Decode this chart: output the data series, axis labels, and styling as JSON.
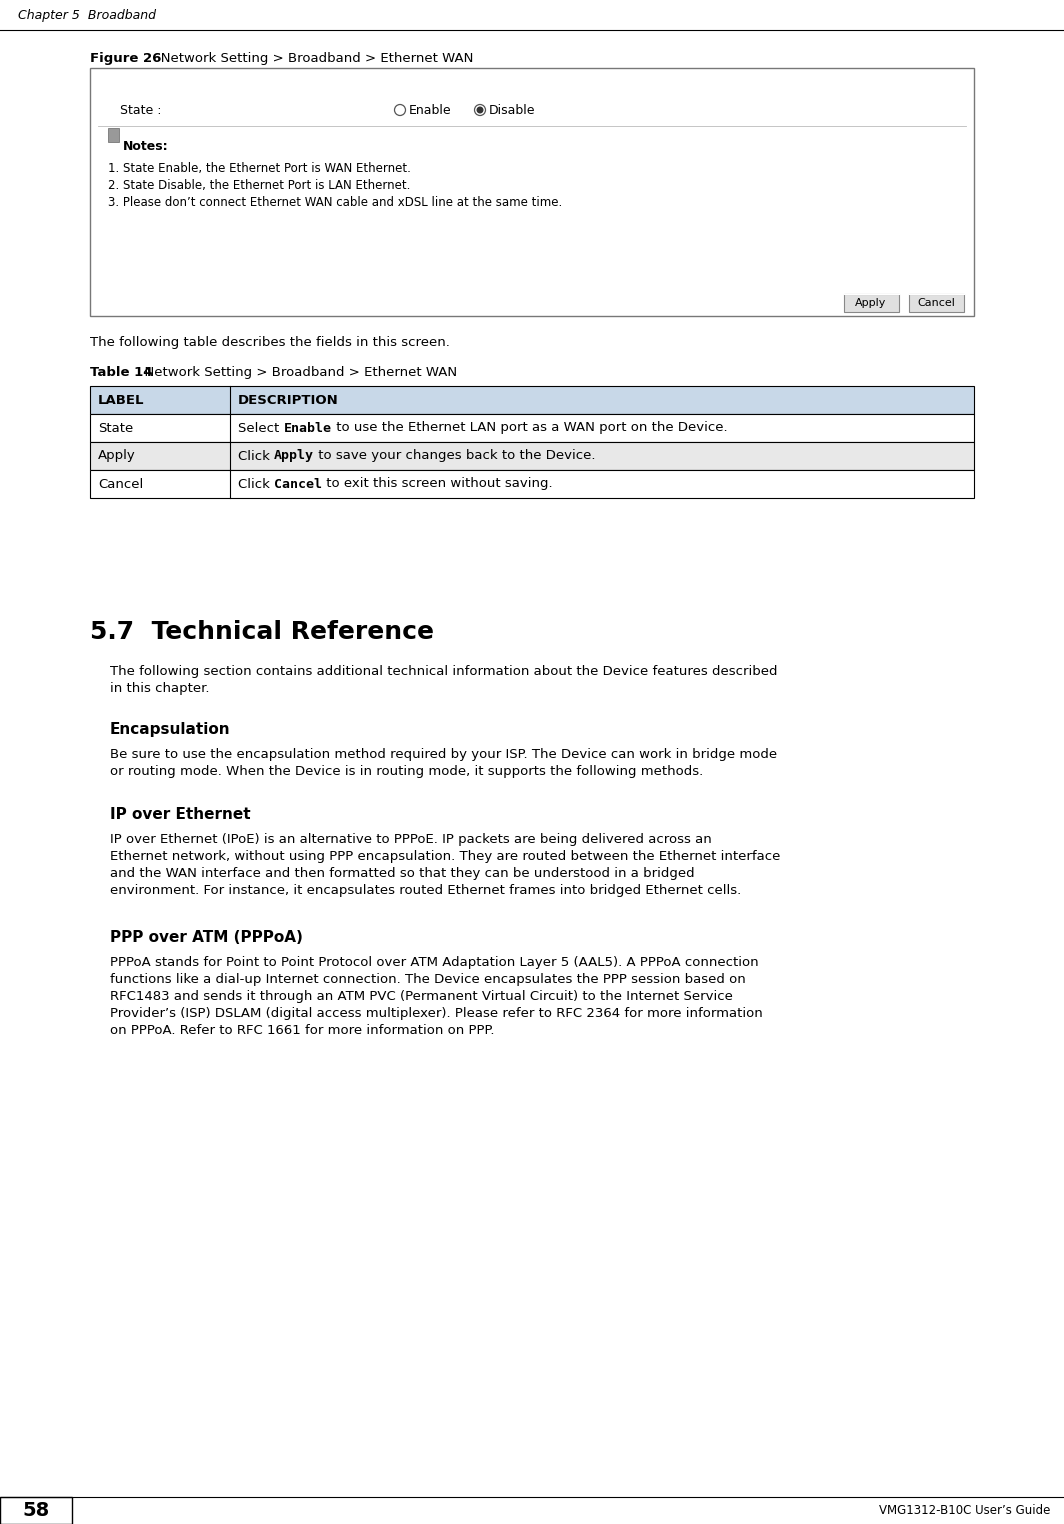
{
  "page_header": "Chapter 5  Broadband",
  "page_footer_num": "58",
  "page_footer_right": "VMG1312-B10C User’s Guide",
  "figure_label": "Figure 26",
  "figure_title": "   Network Setting > Broadband > Ethernet WAN",
  "figure_box": {
    "state_label": "State :",
    "radio_enable": "Enable",
    "radio_disable": "Disable",
    "notes_label": "Notes:",
    "note1": "1. State Enable, the Ethernet Port is WAN Ethernet.",
    "note2": "2. State Disable, the Ethernet Port is LAN Ethernet.",
    "note3": "3. Please don’t connect Ethernet WAN cable and xDSL line at the same time.",
    "btn_apply": "Apply",
    "btn_cancel": "Cancel"
  },
  "table_intro": "The following table describes the fields in this screen.",
  "table_label": "Table 14",
  "table_title": "  Network Setting > Broadband > Ethernet WAN",
  "table_headers": [
    "LABEL",
    "DESCRIPTION"
  ],
  "table_rows_label": [
    "State",
    "Apply",
    "Cancel"
  ],
  "table_rows_desc_pre": [
    "Select ",
    "Click ",
    "Click "
  ],
  "table_rows_desc_bold": [
    "Enable",
    "Apply",
    "Cancel"
  ],
  "table_rows_desc_post": [
    " to use the Ethernet LAN port as a WAN port on the Device.",
    " to save your changes back to the Device.",
    " to exit this screen without saving."
  ],
  "section_title": "5.7  Technical Reference",
  "section_intro_line1": "The following section contains additional technical information about the Device features described",
  "section_intro_line2": "in this chapter.",
  "sub1_title": "Encapsulation",
  "sub1_body_line1": "Be sure to use the encapsulation method required by your ISP. The Device can work in bridge mode",
  "sub1_body_line2": "or routing mode. When the Device is in routing mode, it supports the following methods.",
  "sub2_title": "IP over Ethernet",
  "sub2_body_line1": "IP over Ethernet (IPoE) is an alternative to PPPoE. IP packets are being delivered across an",
  "sub2_body_line2": "Ethernet network, without using PPP encapsulation. They are routed between the Ethernet interface",
  "sub2_body_line3": "and the WAN interface and then formatted so that they can be understood in a bridged",
  "sub2_body_line4": "environment. For instance, it encapsulates routed Ethernet frames into bridged Ethernet cells.",
  "sub3_title": "PPP over ATM (PPPoA)",
  "sub3_body_line1": "PPPoA stands for Point to Point Protocol over ATM Adaptation Layer 5 (AAL5). A PPPoA connection",
  "sub3_body_line2": "functions like a dial-up Internet connection. The Device encapsulates the PPP session based on",
  "sub3_body_line3": "RFC1483 and sends it through an ATM PVC (Permanent Virtual Circuit) to the Internet Service",
  "sub3_body_line4": "Provider’s (ISP) DSLAM (digital access multiplexer). Please refer to RFC 2364 for more information",
  "sub3_body_line5": "on PPPoA. Refer to RFC 1661 for more information on PPP.",
  "bg_color": "#ffffff",
  "table_header_bg": "#c8d8e8",
  "table_alt_bg": "#e8e8e8",
  "table_row_bg": "#ffffff",
  "table_border_color": "#000000",
  "font_size_body": 9.5,
  "font_size_caption": 9.0,
  "font_size_section": 18,
  "font_size_sub": 11,
  "font_size_table_header": 9.5
}
